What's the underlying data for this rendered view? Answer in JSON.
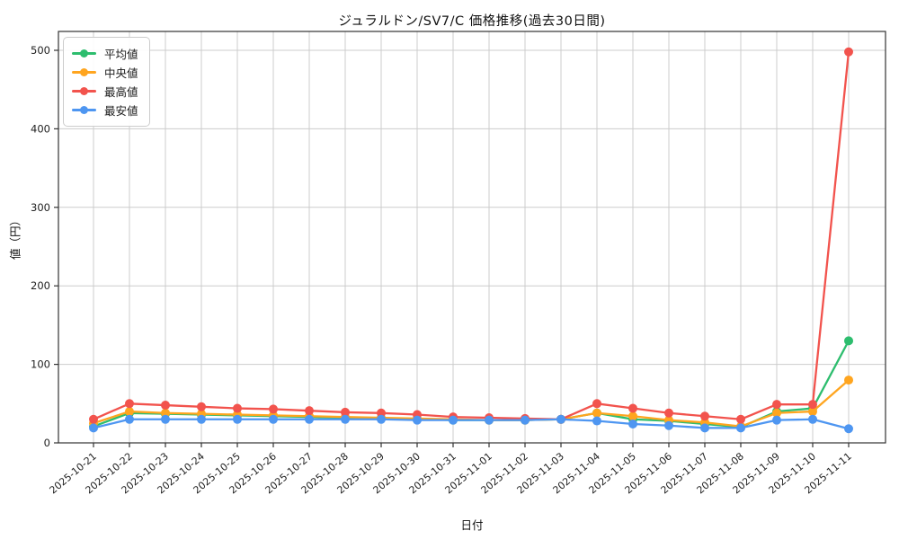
{
  "figure": {
    "title": "ジュラルドン/SV7/C 価格推移(過去30日間)",
    "xlabel": "日付",
    "ylabel": "値（円）"
  },
  "chart_data": {
    "type": "line",
    "title": "ジュラルドン/SV7/C 価格推移(過去30日間)",
    "xlabel": "日付",
    "ylabel": "値（円）",
    "grid": true,
    "grid_color": "#cccccc",
    "spine_color": "#333333",
    "tick_label_color": "#222222",
    "background": "#ffffff",
    "legend_position": "upper left",
    "marker": "circle",
    "ylim": [
      0,
      524
    ],
    "yticks": [
      0,
      100,
      200,
      300,
      400,
      500
    ],
    "x_tick_rotation": -40,
    "categories": [
      "2025-10-21",
      "2025-10-22",
      "2025-10-23",
      "2025-10-24",
      "2025-10-25",
      "2025-10-26",
      "2025-10-27",
      "2025-10-28",
      "2025-10-29",
      "2025-10-30",
      "2025-10-31",
      "2025-11-01",
      "2025-11-02",
      "2025-11-03",
      "2025-11-04",
      "2025-11-05",
      "2025-11-06",
      "2025-11-07",
      "2025-11-08",
      "2025-11-09",
      "2025-11-10",
      "2025-11-11"
    ],
    "series": [
      {
        "key": "average",
        "name": "平均値",
        "color": "#2dbd6e",
        "values": [
          21,
          38,
          37,
          36,
          35,
          34,
          33,
          32,
          31,
          30,
          29,
          29,
          29,
          30,
          38,
          30,
          28,
          24,
          20,
          40,
          44,
          130
        ]
      },
      {
        "key": "median",
        "name": "中央値",
        "color": "#ffa51f",
        "values": [
          25,
          40,
          38,
          37,
          36,
          35,
          34,
          33,
          32,
          31,
          30,
          29,
          29,
          30,
          38,
          34,
          29,
          26,
          21,
          38,
          40,
          80
        ]
      },
      {
        "key": "highest",
        "name": "最高値",
        "color": "#f2534d",
        "values": [
          30,
          50,
          48,
          46,
          44,
          43,
          41,
          39,
          38,
          36,
          33,
          32,
          31,
          30,
          50,
          44,
          38,
          34,
          30,
          49,
          49,
          498
        ]
      },
      {
        "key": "lowest",
        "name": "最安値",
        "color": "#4e96f1",
        "values": [
          19,
          30,
          30,
          30,
          30,
          30,
          30,
          30,
          30,
          29,
          29,
          29,
          29,
          30,
          28,
          24,
          22,
          19,
          19,
          29,
          30,
          18
        ]
      }
    ]
  }
}
